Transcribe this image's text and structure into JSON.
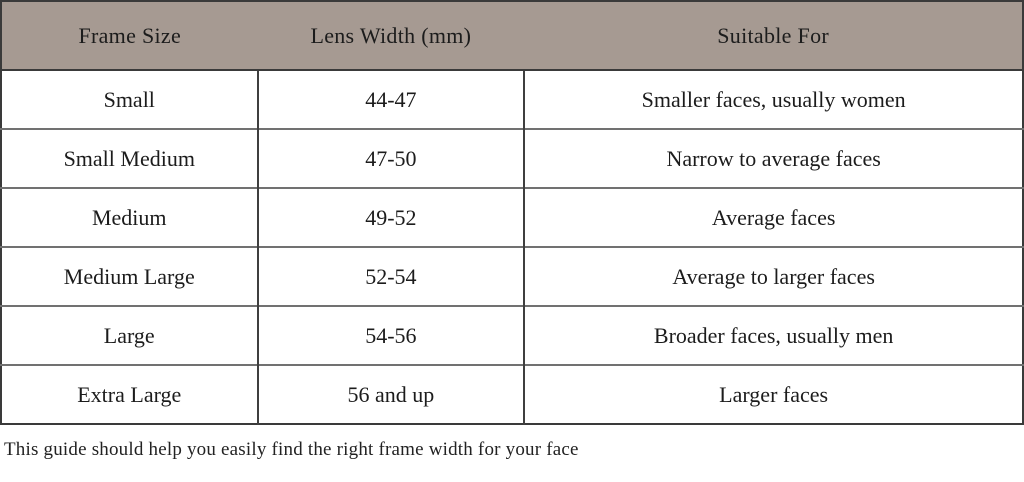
{
  "table": {
    "columns": [
      "Frame Size",
      "Lens Width (mm)",
      "Suitable For"
    ],
    "rows": [
      {
        "frame_size": "Small",
        "lens_width": "44-47",
        "suitable_for": "Smaller faces, usually women"
      },
      {
        "frame_size": "Small Medium",
        "lens_width": "47-50",
        "suitable_for": "Narrow to average faces"
      },
      {
        "frame_size": "Medium",
        "lens_width": "49-52",
        "suitable_for": "Average faces"
      },
      {
        "frame_size": "Medium Large",
        "lens_width": "52-54",
        "suitable_for": "Average to larger faces"
      },
      {
        "frame_size": "Large",
        "lens_width": "54-56",
        "suitable_for": "Broader faces, usually men"
      },
      {
        "frame_size": "Extra Large",
        "lens_width": "56 and up",
        "suitable_for": "Larger faces"
      }
    ]
  },
  "footer": {
    "note": "This guide should help you easily find the right frame width for your face"
  },
  "colors": {
    "header_background": "#a69a92",
    "outer_border": "#3a3a3a",
    "column_divider": "#3f3f3f",
    "row_divider": "#717171",
    "text": "#1c1c1c"
  }
}
